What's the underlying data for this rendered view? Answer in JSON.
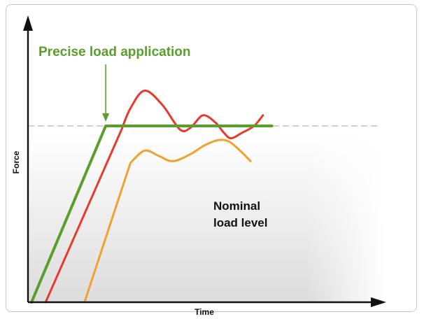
{
  "chart_data": {
    "type": "line",
    "xlabel": "Time",
    "ylabel": "Force",
    "annotations": {
      "top": "Precise load application",
      "side_line1": "Nominal",
      "side_line2": "load level"
    },
    "reference_line": {
      "y": 100,
      "style": "dashed",
      "color": "#c4c4c4"
    },
    "xlim": [
      0,
      100
    ],
    "ylim": [
      0,
      160
    ],
    "grid": false,
    "legend": "none",
    "colors": {
      "green": "#5a9e2c",
      "red": "#e83a2c",
      "orange": "#f0a22e",
      "annotation": "#5a9e2c",
      "axis": "#111111"
    },
    "series": [
      {
        "color_key": "green",
        "x": [
          1,
          22,
          69
        ],
        "y": [
          0,
          100,
          100
        ]
      },
      {
        "color_key": "red",
        "x": [
          5,
          26.5,
          29,
          33,
          38,
          43,
          46,
          49.5,
          53,
          55.5,
          57.5,
          60.5,
          64,
          66.5
        ],
        "y": [
          0,
          98,
          110,
          120,
          112,
          98,
          99,
          106,
          102,
          96,
          93,
          96,
          100,
          106
        ]
      },
      {
        "color_key": "orange",
        "x": [
          16,
          29,
          33,
          37,
          41,
          46,
          50,
          54,
          57,
          60,
          63
        ],
        "y": [
          0,
          79,
          86,
          83,
          80,
          84,
          89,
          92,
          91,
          86,
          80
        ]
      }
    ]
  }
}
